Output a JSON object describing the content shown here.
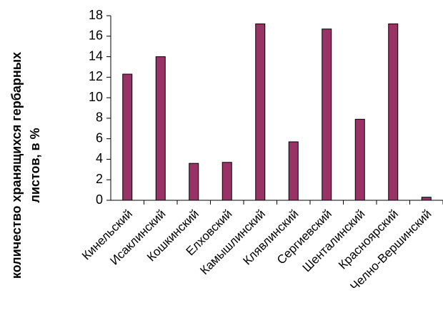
{
  "chart_data": {
    "type": "bar",
    "ylabel": [
      "количество хранящихся гербарных",
      "листов, в %"
    ],
    "categories": [
      "Кинельский",
      "Исаклинский",
      "Кошкинский",
      "Елховский",
      "Камышлинский",
      "Клявлинский",
      "Сергиевский",
      "Шенталинский",
      "Красноярский",
      "Челно-Вершинский"
    ],
    "values": [
      12.3,
      14.0,
      3.6,
      3.7,
      17.2,
      5.7,
      16.7,
      7.9,
      17.2,
      0.3
    ],
    "color": "#993366",
    "ylim": [
      0,
      18
    ],
    "yticks": [
      0,
      2,
      4,
      6,
      8,
      10,
      12,
      14,
      16,
      18
    ],
    "grid": false
  }
}
